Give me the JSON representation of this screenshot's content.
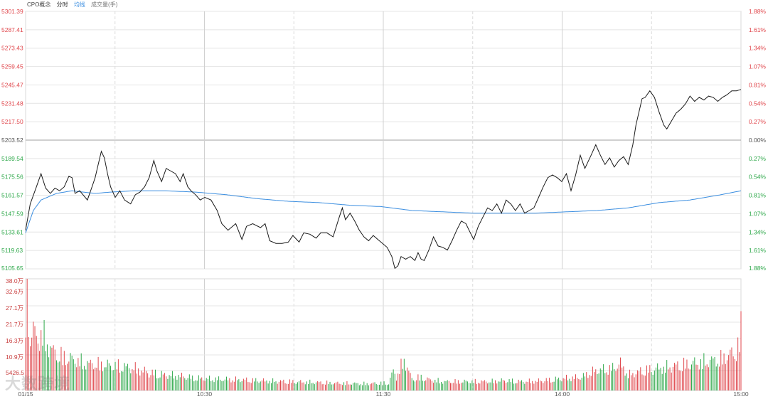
{
  "header": {
    "title": "CPO概念",
    "time_label": "分时",
    "avg_label": "均线",
    "volume_label": "成交量(手)"
  },
  "watermark": "大数跨境",
  "colors": {
    "price_line": "#1a1a1a",
    "avg_line": "#3b8ee0",
    "up": "#e0474c",
    "down": "#2ea84a",
    "grid": "#e4e4e4",
    "base_line": "#a0a0a0"
  },
  "chart_data": {
    "type": "line",
    "date_label": "01/15",
    "x_ticks": [
      "10:30",
      "11:30",
      "14:00",
      "15:00"
    ],
    "prev_close": 5203.52,
    "price_axis": {
      "min": 5105.65,
      "max": 5301.39,
      "ticks": [
        "5301.39",
        "5287.41",
        "5273.43",
        "5259.45",
        "5245.47",
        "5231.48",
        "5217.50",
        "5203.52",
        "5189.54",
        "5175.56",
        "5161.57",
        "5147.59",
        "5133.61",
        "5119.63",
        "5105.65"
      ],
      "pct_ticks": [
        "1.88%",
        "1.61%",
        "1.34%",
        "1.07%",
        "0.81%",
        "0.54%",
        "0.27%",
        "0.00%",
        "0.27%",
        "0.54%",
        "0.81%",
        "1.07%",
        "1.34%",
        "1.61%",
        "1.88%"
      ]
    },
    "volume_axis": {
      "ticks": [
        "38.0万",
        "32.6万",
        "27.1万",
        "21.7万",
        "16.3万",
        "10.9万",
        "5426.5"
      ],
      "max": 380000
    },
    "price_keypoints": [
      [
        0,
        5135
      ],
      [
        3,
        5155
      ],
      [
        7,
        5168
      ],
      [
        10,
        5178
      ],
      [
        13,
        5167
      ],
      [
        16,
        5163
      ],
      [
        19,
        5167
      ],
      [
        22,
        5165
      ],
      [
        25,
        5168
      ],
      [
        28,
        5176
      ],
      [
        30,
        5175
      ],
      [
        32,
        5163
      ],
      [
        35,
        5165
      ],
      [
        40,
        5158
      ],
      [
        43,
        5168
      ],
      [
        45,
        5175
      ],
      [
        47,
        5185
      ],
      [
        49,
        5195
      ],
      [
        51,
        5190
      ],
      [
        53,
        5178
      ],
      [
        55,
        5168
      ],
      [
        58,
        5160
      ],
      [
        61,
        5165
      ],
      [
        64,
        5158
      ],
      [
        68,
        5155
      ],
      [
        71,
        5162
      ],
      [
        74,
        5164
      ],
      [
        77,
        5168
      ],
      [
        80,
        5175
      ],
      [
        83,
        5188
      ],
      [
        85,
        5180
      ],
      [
        88,
        5172
      ],
      [
        91,
        5182
      ],
      [
        94,
        5180
      ],
      [
        97,
        5178
      ],
      [
        100,
        5172
      ],
      [
        102,
        5178
      ],
      [
        105,
        5168
      ],
      [
        107,
        5165
      ],
      [
        110,
        5162
      ],
      [
        113,
        5158
      ],
      [
        116,
        5160
      ],
      [
        120,
        5158
      ],
      [
        124,
        5150
      ],
      [
        127,
        5140
      ],
      [
        131,
        5135
      ],
      [
        136,
        5140
      ],
      [
        140,
        5128
      ],
      [
        143,
        5138
      ],
      [
        147,
        5140
      ],
      [
        152,
        5137
      ],
      [
        155,
        5140
      ],
      [
        158,
        5127
      ],
      [
        162,
        5125
      ],
      [
        166,
        5125
      ],
      [
        170,
        5126
      ],
      [
        173,
        5131
      ],
      [
        177,
        5126
      ],
      [
        180,
        5133
      ],
      [
        184,
        5132
      ],
      [
        188,
        5129
      ],
      [
        191,
        5133
      ],
      [
        195,
        5133
      ],
      [
        199,
        5130
      ],
      [
        203,
        5145
      ],
      [
        205,
        5152
      ],
      [
        207,
        5143
      ],
      [
        210,
        5148
      ],
      [
        213,
        5142
      ],
      [
        216,
        5135
      ],
      [
        219,
        5130
      ],
      [
        222,
        5127
      ],
      [
        225,
        5131
      ],
      [
        228,
        5128
      ],
      [
        231,
        5125
      ],
      [
        234,
        5122
      ],
      [
        237,
        5115
      ],
      [
        239,
        5106
      ],
      [
        241,
        5108
      ],
      [
        243,
        5115
      ],
      [
        246,
        5113
      ],
      [
        249,
        5115
      ],
      [
        252,
        5112
      ],
      [
        254,
        5118
      ],
      [
        256,
        5113
      ],
      [
        258,
        5112
      ],
      [
        261,
        5120
      ],
      [
        264,
        5130
      ],
      [
        267,
        5123
      ],
      [
        270,
        5122
      ],
      [
        273,
        5120
      ],
      [
        276,
        5127
      ],
      [
        279,
        5135
      ],
      [
        282,
        5142
      ],
      [
        285,
        5140
      ],
      [
        287,
        5135
      ],
      [
        290,
        5128
      ],
      [
        293,
        5138
      ],
      [
        296,
        5145
      ],
      [
        299,
        5152
      ],
      [
        302,
        5150
      ],
      [
        305,
        5155
      ],
      [
        308,
        5148
      ],
      [
        311,
        5158
      ],
      [
        314,
        5155
      ],
      [
        317,
        5150
      ],
      [
        320,
        5155
      ],
      [
        323,
        5148
      ],
      [
        326,
        5150
      ],
      [
        329,
        5152
      ],
      [
        332,
        5160
      ],
      [
        335,
        5168
      ],
      [
        338,
        5175
      ],
      [
        341,
        5177
      ],
      [
        344,
        5175
      ],
      [
        347,
        5172
      ],
      [
        350,
        5178
      ],
      [
        353,
        5165
      ],
      [
        356,
        5177
      ],
      [
        359,
        5192
      ],
      [
        362,
        5182
      ],
      [
        366,
        5192
      ],
      [
        369,
        5200
      ],
      [
        372,
        5192
      ],
      [
        375,
        5185
      ],
      [
        378,
        5190
      ],
      [
        381,
        5183
      ],
      [
        384,
        5188
      ],
      [
        387,
        5191
      ],
      [
        390,
        5185
      ],
      [
        393,
        5200
      ],
      [
        395,
        5215
      ],
      [
        397,
        5225
      ],
      [
        399,
        5235
      ],
      [
        401,
        5236
      ],
      [
        404,
        5241
      ],
      [
        407,
        5236
      ],
      [
        410,
        5225
      ],
      [
        413,
        5215
      ],
      [
        415,
        5212
      ],
      [
        418,
        5218
      ],
      [
        421,
        5224
      ],
      [
        424,
        5227
      ],
      [
        427,
        5231
      ],
      [
        430,
        5237
      ],
      [
        433,
        5233
      ],
      [
        436,
        5236
      ],
      [
        439,
        5234
      ],
      [
        442,
        5237
      ],
      [
        445,
        5236
      ],
      [
        448,
        5233
      ],
      [
        451,
        5236
      ],
      [
        454,
        5238
      ],
      [
        457,
        5241
      ],
      [
        460,
        5241
      ],
      [
        463,
        5242
      ]
    ],
    "avg_keypoints": [
      [
        0,
        5133
      ],
      [
        5,
        5150
      ],
      [
        10,
        5158
      ],
      [
        20,
        5163
      ],
      [
        30,
        5165
      ],
      [
        45,
        5163
      ],
      [
        55,
        5164
      ],
      [
        70,
        5165
      ],
      [
        90,
        5165
      ],
      [
        110,
        5164
      ],
      [
        130,
        5162
      ],
      [
        150,
        5159
      ],
      [
        170,
        5157
      ],
      [
        190,
        5156
      ],
      [
        210,
        5154
      ],
      [
        230,
        5153
      ],
      [
        250,
        5150
      ],
      [
        270,
        5149
      ],
      [
        290,
        5148
      ],
      [
        310,
        5148
      ],
      [
        330,
        5148
      ],
      [
        350,
        5149
      ],
      [
        370,
        5150
      ],
      [
        390,
        5152
      ],
      [
        410,
        5156
      ],
      [
        430,
        5158
      ],
      [
        450,
        5162
      ],
      [
        463,
        5165
      ]
    ],
    "volume_keypoints": [
      [
        0,
        180000
      ],
      [
        1,
        380000
      ],
      [
        2,
        300000
      ],
      [
        3,
        270000
      ],
      [
        5,
        270000
      ],
      [
        8,
        220000
      ],
      [
        10,
        260000
      ],
      [
        12,
        240000
      ],
      [
        15,
        200000
      ],
      [
        20,
        160000
      ],
      [
        25,
        150000
      ],
      [
        30,
        140000
      ],
      [
        35,
        130000
      ],
      [
        40,
        120000
      ],
      [
        50,
        115000
      ],
      [
        60,
        110000
      ],
      [
        70,
        100000
      ],
      [
        80,
        80000
      ],
      [
        90,
        70000
      ],
      [
        100,
        65000
      ],
      [
        110,
        55000
      ],
      [
        120,
        52000
      ],
      [
        130,
        50000
      ],
      [
        140,
        48000
      ],
      [
        150,
        45000
      ],
      [
        160,
        42000
      ],
      [
        170,
        40000
      ],
      [
        180,
        38000
      ],
      [
        190,
        36000
      ],
      [
        200,
        33000
      ],
      [
        210,
        32000
      ],
      [
        220,
        30000
      ],
      [
        230,
        33000
      ],
      [
        235,
        32000
      ],
      [
        238,
        90000
      ],
      [
        240,
        60000
      ],
      [
        245,
        140000
      ],
      [
        250,
        50000
      ],
      [
        255,
        60000
      ],
      [
        260,
        50000
      ],
      [
        270,
        40000
      ],
      [
        280,
        40000
      ],
      [
        290,
        40000
      ],
      [
        300,
        40000
      ],
      [
        310,
        45000
      ],
      [
        320,
        40000
      ],
      [
        330,
        42000
      ],
      [
        340,
        48000
      ],
      [
        350,
        55000
      ],
      [
        360,
        60000
      ],
      [
        365,
        80000
      ],
      [
        370,
        90000
      ],
      [
        380,
        100000
      ],
      [
        385,
        120000
      ],
      [
        390,
        70000
      ],
      [
        395,
        80000
      ],
      [
        400,
        90000
      ],
      [
        410,
        100000
      ],
      [
        420,
        110000
      ],
      [
        430,
        120000
      ],
      [
        440,
        130000
      ],
      [
        450,
        140000
      ],
      [
        455,
        160000
      ],
      [
        460,
        170000
      ],
      [
        463,
        270000
      ]
    ]
  }
}
